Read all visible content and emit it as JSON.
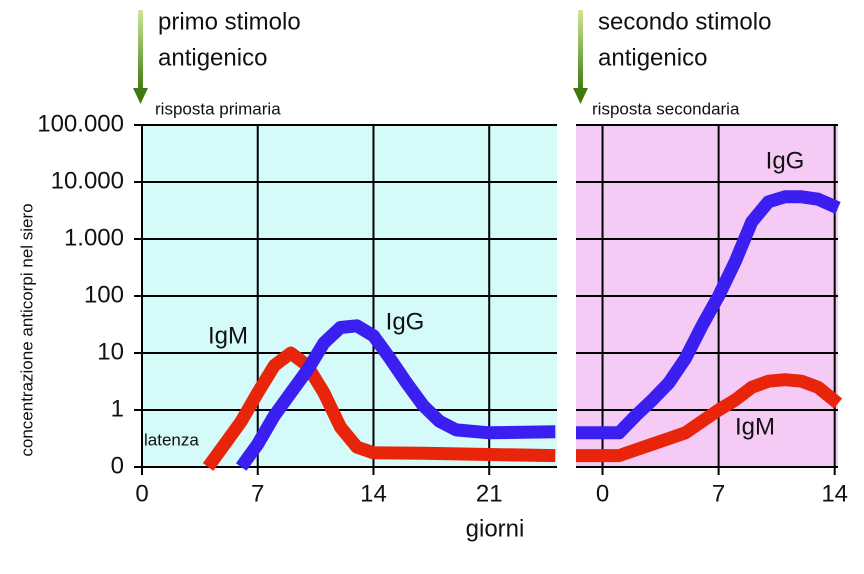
{
  "chart_data": [
    {
      "type": "line",
      "stimulus": [
        "primo stimolo",
        "antigenico"
      ],
      "response": "risposta primaria",
      "latency": "latenza",
      "y_label": "concentrazione anticorpi nel siero",
      "x_label": "giorni",
      "background": "#d4fafa",
      "xlim": [
        0,
        25.1
      ],
      "xticks": [
        0,
        7,
        14,
        21
      ],
      "ylim": [
        0,
        100000
      ],
      "yticks": [
        0,
        1,
        10,
        100,
        {
          "value": 1000,
          "label": "1.000"
        },
        {
          "value": 10000,
          "label": "10.000"
        },
        {
          "value": 100000,
          "label": "100.000"
        }
      ],
      "grid": true,
      "series": [
        {
          "name": "IgM",
          "color": "#e8250a",
          "x": [
            4,
            5,
            6,
            7,
            8,
            9,
            10,
            11,
            12,
            13,
            14,
            17,
            21,
            25
          ],
          "values": [
            0,
            0.4,
            0.8,
            2,
            6,
            10,
            6,
            2,
            0.7,
            0.35,
            0.25,
            0.24,
            0.22,
            0.2
          ]
        },
        {
          "name": "IgG",
          "color": "#3a1ff0",
          "x": [
            6,
            7,
            8,
            9,
            10,
            11,
            12,
            13,
            14,
            15,
            16,
            17,
            18,
            19,
            21,
            25
          ],
          "values": [
            0,
            0.4,
            0.9,
            2,
            5,
            15,
            28,
            30,
            20,
            8,
            3,
            1.2,
            0.8,
            0.65,
            0.6,
            0.62
          ]
        }
      ]
    },
    {
      "type": "line",
      "stimulus": [
        "secondo stimolo",
        "antigenico"
      ],
      "response": "risposta secondaria",
      "background": "#f5cbf5",
      "xlim": [
        -1.6,
        14.2
      ],
      "xticks": [
        0,
        7,
        14
      ],
      "series": [
        {
          "name": "IgG",
          "color": "#3a1ff0",
          "x": [
            -1.6,
            0,
            1,
            2,
            3,
            4,
            5,
            6,
            7,
            8,
            9,
            10,
            11,
            12,
            13,
            14.2
          ],
          "values": [
            0.6,
            0.6,
            0.6,
            0.9,
            1.5,
            3,
            8,
            30,
            100,
            400,
            2000,
            4500,
            5500,
            5500,
            5000,
            3500
          ]
        },
        {
          "name": "IgM",
          "color": "#e8250a",
          "x": [
            -1.6,
            0,
            1,
            2,
            3,
            4,
            5,
            6,
            7,
            8,
            9,
            10,
            11,
            12,
            13,
            14.2
          ],
          "values": [
            0.2,
            0.2,
            0.2,
            0.3,
            0.4,
            0.5,
            0.6,
            0.8,
            1,
            1.5,
            2.5,
            3.2,
            3.4,
            3.2,
            2.5,
            1.3
          ]
        }
      ]
    }
  ]
}
